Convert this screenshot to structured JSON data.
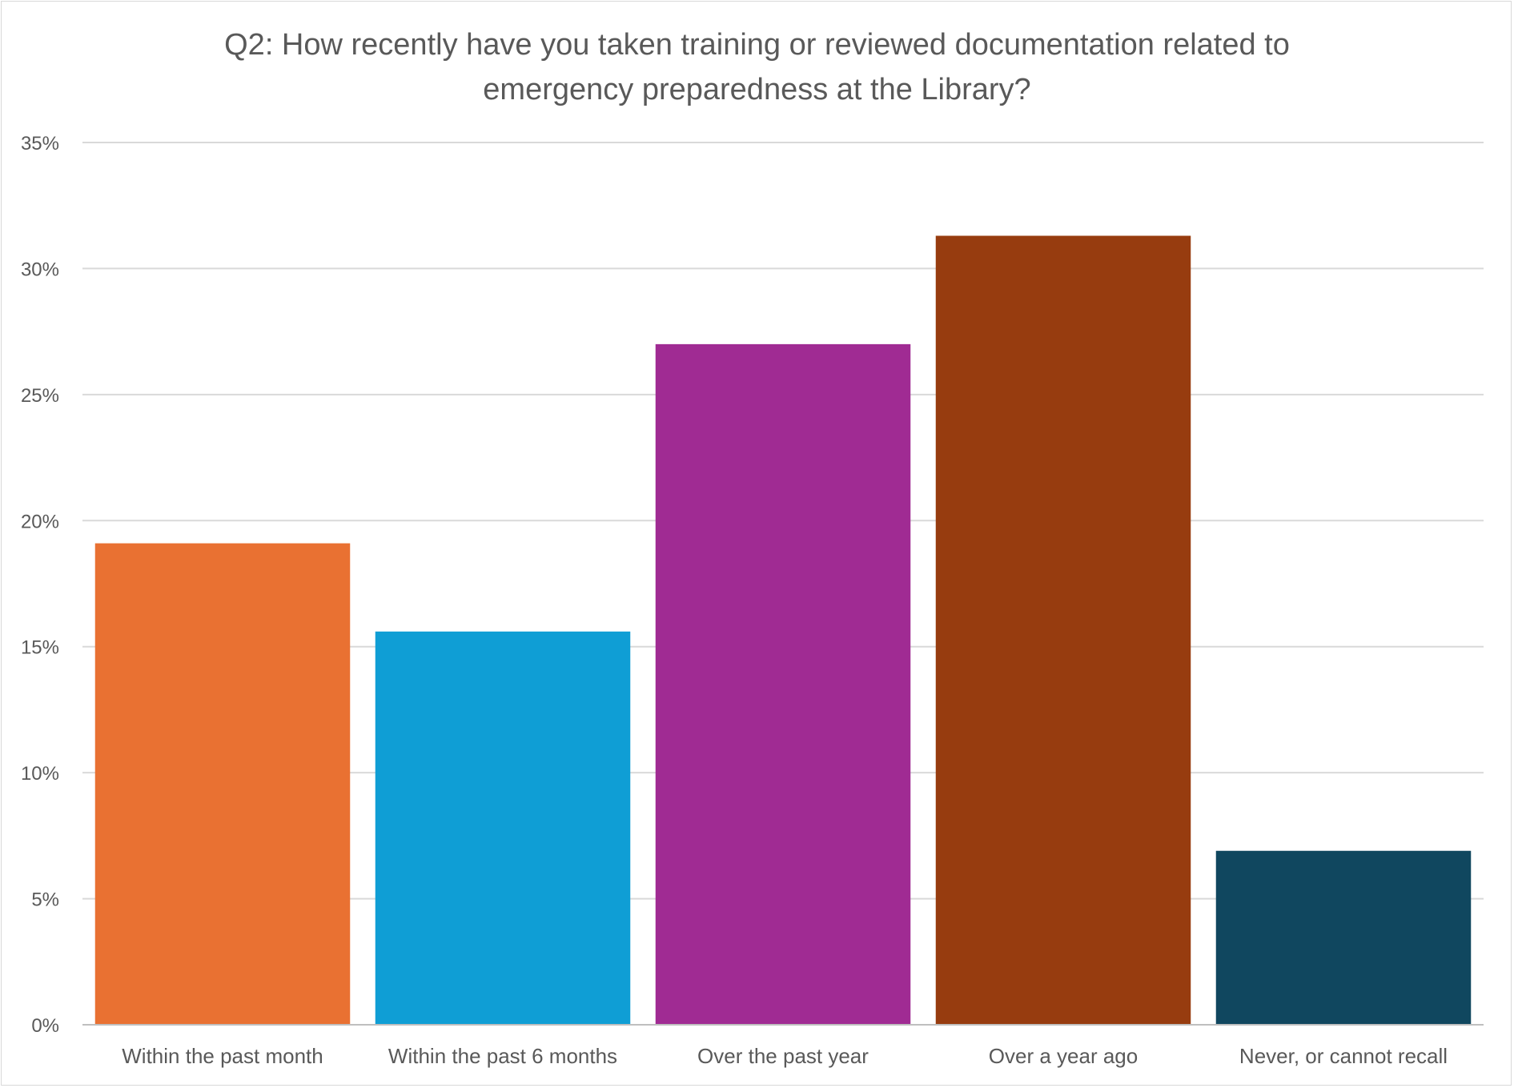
{
  "chart_data": {
    "type": "bar",
    "title_lines": [
      "Q2: How recently have you taken training or reviewed documentation related to",
      "emergency preparedness at the Library?"
    ],
    "categories": [
      "Within the past month",
      "Within the past 6 months",
      "Over the past year",
      "Over a year ago",
      "Never, or cannot recall"
    ],
    "values": [
      19.1,
      15.6,
      27.0,
      31.3,
      6.9
    ],
    "colors": [
      "#E97132",
      "#0F9ED5",
      "#A02B93",
      "#973C0F",
      "#10475F"
    ],
    "ylim": [
      0,
      35
    ],
    "yticks": [
      0,
      5,
      10,
      15,
      20,
      25,
      30,
      35
    ],
    "ytick_labels": [
      "0%",
      "5%",
      "10%",
      "15%",
      "20%",
      "25%",
      "30%",
      "35%"
    ],
    "grid": true,
    "gridline_color": "#d9d9d9",
    "axis_color": "#bfbfbf"
  }
}
